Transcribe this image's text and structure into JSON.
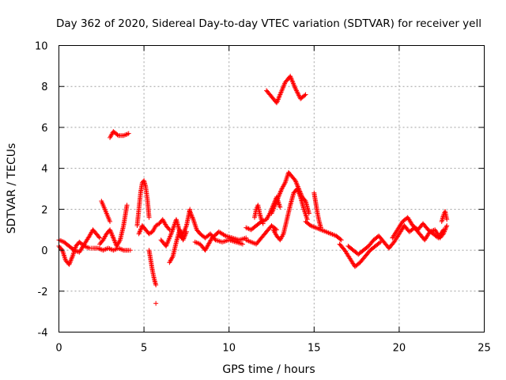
{
  "chart_data": {
    "type": "scatter",
    "title": "Day 362 of 2020, Sidereal Day-to-day VTEC variation (SDTVAR) for receiver yell",
    "xlabel": "GPS time / hours",
    "ylabel": "SDTVAR / TECUs",
    "xlim": [
      0,
      25
    ],
    "ylim": [
      -4,
      10
    ],
    "xticks": [
      0,
      5,
      10,
      15,
      20,
      25
    ],
    "yticks": [
      -4,
      -2,
      0,
      2,
      4,
      6,
      8,
      10
    ],
    "xtick_labels": [
      "0",
      "5",
      "10",
      "15",
      "20",
      "25"
    ],
    "ytick_labels": [
      "-4",
      "-2",
      "0",
      "2",
      "4",
      "6",
      "8",
      "10"
    ],
    "grid": true,
    "marker": "+",
    "color": "#ff0000",
    "series": [
      {
        "name": "SDTVAR",
        "segments": [
          {
            "x": [
              0.0,
              0.2,
              0.4,
              0.6,
              0.8,
              1.0,
              1.2,
              1.5,
              1.8,
              2.0,
              2.3,
              2.6,
              2.9,
              3.2,
              3.5,
              3.8,
              4.1,
              4.2
            ],
            "y": [
              0.2,
              0.0,
              -0.5,
              -0.7,
              -0.3,
              0.2,
              0.4,
              0.2,
              0.1,
              0.1,
              0.1,
              0.0,
              0.1,
              0.0,
              0.1,
              0.0,
              0.0,
              0.0
            ]
          },
          {
            "x": [
              0.0,
              0.3,
              0.6,
              0.9,
              1.2,
              1.5,
              1.8,
              2.0,
              2.2,
              2.4
            ],
            "y": [
              0.5,
              0.4,
              0.2,
              0.0,
              -0.1,
              0.3,
              0.7,
              1.0,
              0.8,
              0.6
            ]
          },
          {
            "x": [
              2.4,
              2.6,
              2.8,
              3.0,
              3.2,
              3.4,
              3.6,
              3.8,
              4.0
            ],
            "y": [
              0.3,
              0.5,
              0.8,
              1.0,
              0.6,
              0.2,
              0.5,
              1.2,
              2.2
            ]
          },
          {
            "x": [
              2.5,
              2.6,
              2.7,
              2.8,
              2.9,
              3.0
            ],
            "y": [
              2.4,
              2.2,
              2.0,
              1.8,
              1.6,
              1.4
            ]
          },
          {
            "x": [
              3.0,
              3.2,
              3.5,
              3.8,
              4.1
            ],
            "y": [
              5.5,
              5.8,
              5.6,
              5.6,
              5.7
            ]
          },
          {
            "x": [
              4.6,
              4.7,
              4.8,
              4.9,
              5.0,
              5.1,
              5.2,
              5.3
            ],
            "y": [
              1.2,
              2.0,
              2.8,
              3.3,
              3.4,
              3.1,
              2.5,
              1.6
            ]
          },
          {
            "x": [
              4.7,
              4.9,
              5.1,
              5.3,
              5.5,
              5.7,
              5.9,
              6.1,
              6.3,
              6.5
            ],
            "y": [
              0.8,
              1.2,
              1.0,
              0.8,
              0.9,
              1.2,
              1.3,
              1.5,
              1.2,
              1.0
            ]
          },
          {
            "x": [
              5.3,
              5.4,
              5.5,
              5.6,
              5.7
            ],
            "y": [
              0.0,
              -0.5,
              -1.0,
              -1.4,
              -1.7
            ]
          },
          {
            "x": [
              5.7
            ],
            "y": [
              -2.6
            ]
          },
          {
            "x": [
              6.0,
              6.3,
              6.6,
              6.9,
              7.2,
              7.5,
              7.7
            ],
            "y": [
              0.5,
              0.2,
              0.8,
              1.5,
              0.6,
              1.2,
              2.0
            ]
          },
          {
            "x": [
              6.5,
              6.7,
              6.9,
              7.1,
              7.3,
              7.5
            ],
            "y": [
              -0.6,
              -0.3,
              0.4,
              1.0,
              0.5,
              0.9
            ]
          },
          {
            "x": [
              7.7,
              7.9,
              8.1,
              8.3,
              8.6,
              8.9,
              9.2,
              9.6,
              10.0,
              10.4,
              10.8
            ],
            "y": [
              1.9,
              1.5,
              1.0,
              0.8,
              0.6,
              0.8,
              0.5,
              0.4,
              0.5,
              0.4,
              0.3
            ]
          },
          {
            "x": [
              8.0,
              8.3,
              8.6,
              9.0,
              9.4,
              9.8,
              10.2,
              10.6,
              11.0
            ],
            "y": [
              0.4,
              0.3,
              0.0,
              0.6,
              0.9,
              0.7,
              0.6,
              0.5,
              0.6
            ]
          },
          {
            "x": [
              11.0,
              11.3,
              11.6,
              11.9,
              12.2,
              12.5,
              12.8
            ],
            "y": [
              0.5,
              0.4,
              0.3,
              0.6,
              0.9,
              1.2,
              1.0
            ]
          },
          {
            "x": [
              11.0,
              11.3,
              11.6,
              11.9,
              12.2,
              12.4,
              12.6,
              12.8,
              13.0
            ],
            "y": [
              1.1,
              1.0,
              1.2,
              1.4,
              1.5,
              1.8,
              2.2,
              2.6,
              2.1
            ]
          },
          {
            "x": [
              11.5,
              11.6,
              11.7,
              11.8,
              11.9,
              12.0
            ],
            "y": [
              1.6,
              2.0,
              2.2,
              1.8,
              1.5,
              1.3
            ]
          },
          {
            "x": [
              12.2,
              12.5,
              12.8,
              13.0,
              13.3,
              13.6,
              13.9,
              14.2,
              14.5
            ],
            "y": [
              7.8,
              7.5,
              7.2,
              7.6,
              8.2,
              8.5,
              7.9,
              7.4,
              7.6
            ]
          },
          {
            "x": [
              12.5,
              12.7,
              12.9,
              13.1,
              13.3,
              13.5,
              13.7,
              13.9,
              14.1,
              14.3,
              14.5,
              14.7
            ],
            "y": [
              1.8,
              2.2,
              2.6,
              3.0,
              3.3,
              3.8,
              3.6,
              3.4,
              3.0,
              2.6,
              2.4,
              1.8
            ]
          },
          {
            "x": [
              12.6,
              12.8,
              13.0,
              13.2,
              13.4,
              13.6,
              13.8,
              14.0,
              14.2,
              14.4,
              14.6
            ],
            "y": [
              1.0,
              0.7,
              0.5,
              0.8,
              1.5,
              2.2,
              2.8,
              3.0,
              2.6,
              2.0,
              1.5
            ]
          },
          {
            "x": [
              14.5,
              14.8,
              15.1,
              15.4,
              15.7,
              16.0,
              16.3,
              16.6
            ],
            "y": [
              1.4,
              1.2,
              1.1,
              1.0,
              0.9,
              0.8,
              0.7,
              0.5
            ]
          },
          {
            "x": [
              15.0,
              15.1,
              15.2,
              15.3,
              15.4
            ],
            "y": [
              2.8,
              2.3,
              1.8,
              1.4,
              1.1
            ]
          },
          {
            "x": [
              16.5,
              16.8,
              17.1,
              17.4,
              17.7,
              18.0,
              18.3,
              18.6,
              18.9
            ],
            "y": [
              0.3,
              0.0,
              -0.4,
              -0.8,
              -0.6,
              -0.3,
              0.0,
              0.2,
              0.4
            ]
          },
          {
            "x": [
              17.0,
              17.3,
              17.6,
              17.9,
              18.2,
              18.5,
              18.8,
              19.1,
              19.4
            ],
            "y": [
              0.2,
              0.0,
              -0.2,
              0.0,
              0.2,
              0.5,
              0.7,
              0.4,
              0.1
            ]
          },
          {
            "x": [
              19.4,
              19.7,
              20.0,
              20.3,
              20.6,
              20.9,
              21.2,
              21.5,
              21.8,
              22.1,
              22.4,
              22.6,
              22.8
            ],
            "y": [
              0.1,
              0.4,
              0.8,
              1.2,
              0.9,
              1.1,
              0.8,
              0.5,
              0.9,
              1.0,
              0.6,
              0.8,
              1.2
            ]
          },
          {
            "x": [
              19.6,
              19.9,
              20.2,
              20.5,
              20.8,
              21.1,
              21.4,
              21.7,
              22.0,
              22.3,
              22.6
            ],
            "y": [
              0.6,
              1.0,
              1.4,
              1.6,
              1.2,
              1.0,
              1.3,
              1.0,
              0.8,
              0.6,
              1.0
            ]
          },
          {
            "x": [
              22.5,
              22.6,
              22.7,
              22.8
            ],
            "y": [
              1.4,
              1.7,
              1.9,
              1.5
            ]
          }
        ]
      }
    ]
  }
}
